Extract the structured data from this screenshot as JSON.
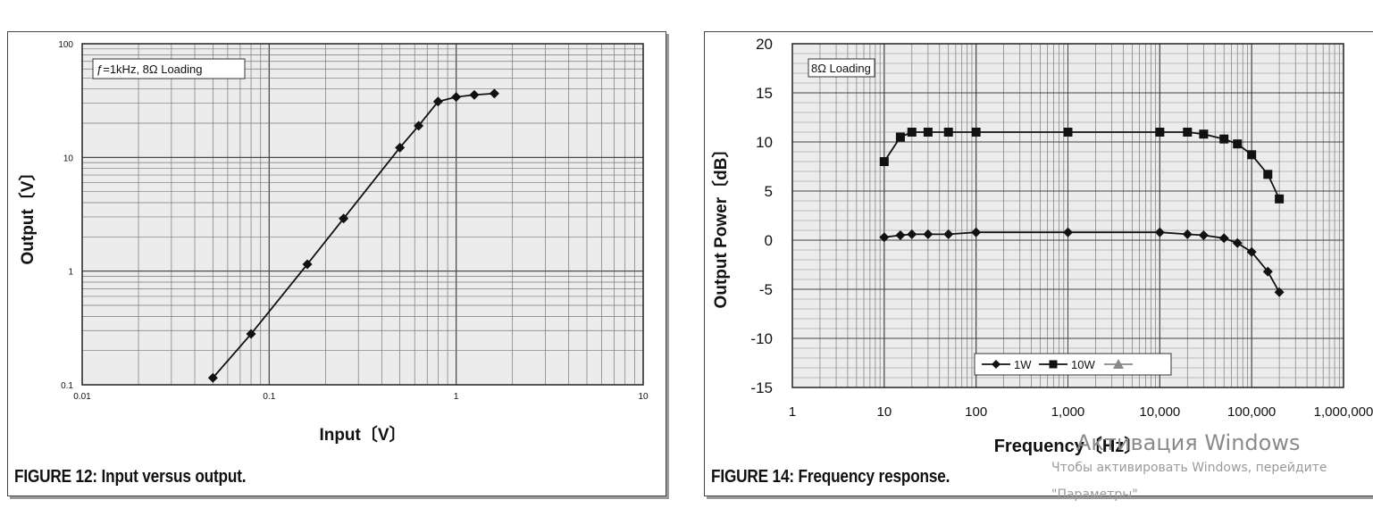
{
  "chart_data": [
    {
      "type": "line",
      "scale": "log-log",
      "caption": "FIGURE 12: Input versus output.",
      "annotation": "ƒ=1kHz, 8Ω Loading",
      "xlabel": "Input〔V〕",
      "ylabel": "Output〔V〕",
      "xlim": [
        0.01,
        10
      ],
      "ylim": [
        0.1,
        100
      ],
      "x_ticks": [
        "0.01",
        "0.1",
        "1",
        "10"
      ],
      "y_ticks": [
        "0.1",
        "1",
        "10",
        "100"
      ],
      "grid": true,
      "series": [
        {
          "name": "Output",
          "marker": "diamond",
          "x": [
            0.05,
            0.08,
            0.16,
            0.25,
            0.5,
            0.63,
            0.8,
            1.0,
            1.25,
            1.6
          ],
          "y": [
            0.115,
            0.28,
            1.15,
            2.9,
            12.2,
            19.0,
            31.0,
            34.0,
            35.5,
            36.5
          ]
        }
      ]
    },
    {
      "type": "line",
      "scale": "semilog-x",
      "caption": "FIGURE 14: Frequency response.",
      "annotation": "8Ω Loading",
      "xlabel": "Frequency〔Hz〕",
      "ylabel": "Output Power〔dB〕",
      "xlim": [
        1,
        1000000
      ],
      "ylim": [
        -15,
        20
      ],
      "x_ticks": [
        "1",
        "10",
        "100",
        "1,000",
        "10,000",
        "100,000",
        "1,000,000"
      ],
      "y_ticks": [
        "20",
        "15",
        "10",
        "5",
        "0",
        "-5",
        "-10",
        "-15"
      ],
      "grid": true,
      "legend_position": "bottom-center",
      "series": [
        {
          "name": "1W",
          "marker": "diamond",
          "x": [
            10,
            15,
            20,
            30,
            50,
            100,
            1000,
            10000,
            20000,
            30000,
            50000,
            70000,
            100000,
            150000,
            200000
          ],
          "y": [
            0.3,
            0.5,
            0.6,
            0.6,
            0.6,
            0.8,
            0.8,
            0.8,
            0.6,
            0.5,
            0.2,
            -0.3,
            -1.2,
            -3.2,
            -5.3
          ]
        },
        {
          "name": "10W",
          "marker": "square",
          "x": [
            10,
            15,
            20,
            30,
            50,
            100,
            1000,
            10000,
            20000,
            30000,
            50000,
            70000,
            100000,
            150000,
            200000
          ],
          "y": [
            8.0,
            10.5,
            11.0,
            11.0,
            11.0,
            11.0,
            11.0,
            11.0,
            11.0,
            10.8,
            10.3,
            9.8,
            8.7,
            6.7,
            4.2
          ]
        },
        {
          "name": "",
          "marker": "triangle",
          "x": [],
          "y": []
        }
      ]
    }
  ],
  "watermark": {
    "title": "Активация Windows",
    "line1": "Чтобы активировать Windows, перейдите",
    "line2": "\"Параметры\"."
  }
}
